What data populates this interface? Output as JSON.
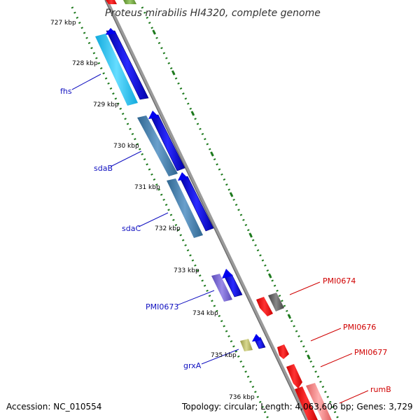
{
  "title": "Proteus mirabilis HI4320, complete genome",
  "footer": {
    "accession": "Accession: NC_010554",
    "topology": "Topology: circular; Length: 4,063,606 bp; Genes: 3,729"
  },
  "colors": {
    "backbone": "#8c8c8c",
    "tick": "#1e7a1e",
    "blue_label": "#1010c0",
    "red_label": "#d00000"
  },
  "bp_labels": [
    "727 kbp",
    "728 kbp",
    "729 kbp",
    "730 kbp",
    "731 kbp",
    "732 kbp",
    "733 kbp",
    "734 kbp",
    "735 kbp",
    "736 kbp"
  ],
  "genes_forward": [
    {
      "name": "fhs",
      "color": "#22bbee"
    },
    {
      "name": "sdaB",
      "color": "#3a7aaa"
    },
    {
      "name": "sdaC",
      "color": "#3a7aaa"
    },
    {
      "name": "PMI0673",
      "color": "#6a5acd"
    },
    {
      "name": "grxA",
      "color": "#b8b860"
    }
  ],
  "genes_reverse": [
    {
      "name": "PMI0674",
      "color": "#ee1111"
    },
    {
      "name": "PMI0676",
      "color": "#ee1111"
    },
    {
      "name": "PMI0677",
      "color": "#ee1111"
    },
    {
      "name": "rumB",
      "color": "#ee1111"
    }
  ]
}
